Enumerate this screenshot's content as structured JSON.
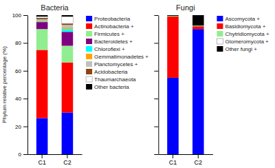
{
  "chart_data": [
    {
      "type": "bar",
      "stacked": true,
      "title": "Bacteria",
      "y_label": "Phylum relative percentage (%)",
      "categories": [
        "C1",
        "C2"
      ],
      "series": [
        {
          "name": "Proteobacteria",
          "color": "#0000FF",
          "values": [
            26,
            30
          ]
        },
        {
          "name": "Actinobacteria +",
          "color": "#FF0000",
          "values": [
            49,
            36
          ]
        },
        {
          "name": "Firmicutes +",
          "color": "#90EE90",
          "values": [
            15,
            12
          ]
        },
        {
          "name": "Bacteroidetes +",
          "color": "#800080",
          "values": [
            5,
            10
          ]
        },
        {
          "name": "Chloroflexi +",
          "color": "#00FFFF",
          "values": [
            0.5,
            2
          ]
        },
        {
          "name": "Gemmatimonadetes +",
          "color": "#FFA500",
          "values": [
            0.5,
            1
          ]
        },
        {
          "name": "Planctomycetes +",
          "color": "#C0C0C0",
          "values": [
            1,
            2
          ]
        },
        {
          "name": "Acidobacteria",
          "color": "#8B4513",
          "values": [
            1,
            1
          ]
        },
        {
          "name": "Thaumarchaeota",
          "color": "#FFFFFF",
          "values": [
            1,
            5
          ]
        },
        {
          "name": "Other bacteria",
          "color": "#000000",
          "values": [
            1,
            1
          ]
        }
      ],
      "ylim": [
        0,
        100
      ],
      "yticks": [
        0,
        20,
        40,
        60,
        80,
        100
      ],
      "grid": false,
      "legend": "right"
    },
    {
      "type": "bar",
      "stacked": true,
      "title": "Fungi",
      "categories": [
        "C1",
        "C2"
      ],
      "series": [
        {
          "name": "Ascomycota +",
          "color": "#0000FF",
          "values": [
            55,
            90
          ]
        },
        {
          "name": "Basidiomycota +",
          "color": "#FF0000",
          "values": [
            44,
            2
          ]
        },
        {
          "name": "Chytridiomycota +",
          "color": "#90EE90",
          "values": [
            0.5,
            0.5
          ]
        },
        {
          "name": "Glomeromycota +",
          "color": "#FFFFFF",
          "values": [
            0,
            0
          ]
        },
        {
          "name": "Other fungi +",
          "color": "#000000",
          "values": [
            0.5,
            7.5
          ]
        }
      ],
      "ylim": [
        0,
        100
      ],
      "yticks": [
        0,
        20,
        40,
        60,
        80,
        100
      ],
      "grid": false,
      "legend": "right",
      "tick_labels": "x"
    }
  ]
}
